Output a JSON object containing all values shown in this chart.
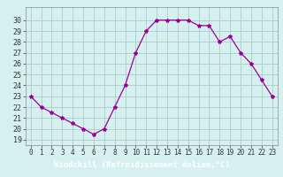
{
  "x": [
    0,
    1,
    2,
    3,
    4,
    5,
    6,
    7,
    8,
    9,
    10,
    11,
    12,
    13,
    14,
    15,
    16,
    17,
    18,
    19,
    20,
    21,
    22,
    23
  ],
  "y": [
    23,
    22,
    21.5,
    21,
    20.5,
    20,
    19.5,
    20,
    22,
    24,
    27,
    29,
    30,
    30,
    30,
    30,
    29.5,
    29.5,
    28,
    28.5,
    27,
    26,
    24.5,
    23
  ],
  "line_color": "#990099",
  "marker": "*",
  "marker_size": 3,
  "bg_color": "#d6f0f0",
  "grid_color": "#aacccc",
  "xlabel": "Windchill (Refroidissement éolien,°C)",
  "xlabel_fontsize": 6.5,
  "xlabel_bg": "#7722aa",
  "xlabel_color": "#ffffff",
  "ylabel_ticks": [
    19,
    20,
    21,
    22,
    23,
    24,
    25,
    26,
    27,
    28,
    29,
    30
  ],
  "xlim": [
    -0.5,
    23.5
  ],
  "ylim": [
    18.5,
    31.2
  ],
  "tick_fontsize": 5.5,
  "ytick_fontsize": 6.0
}
